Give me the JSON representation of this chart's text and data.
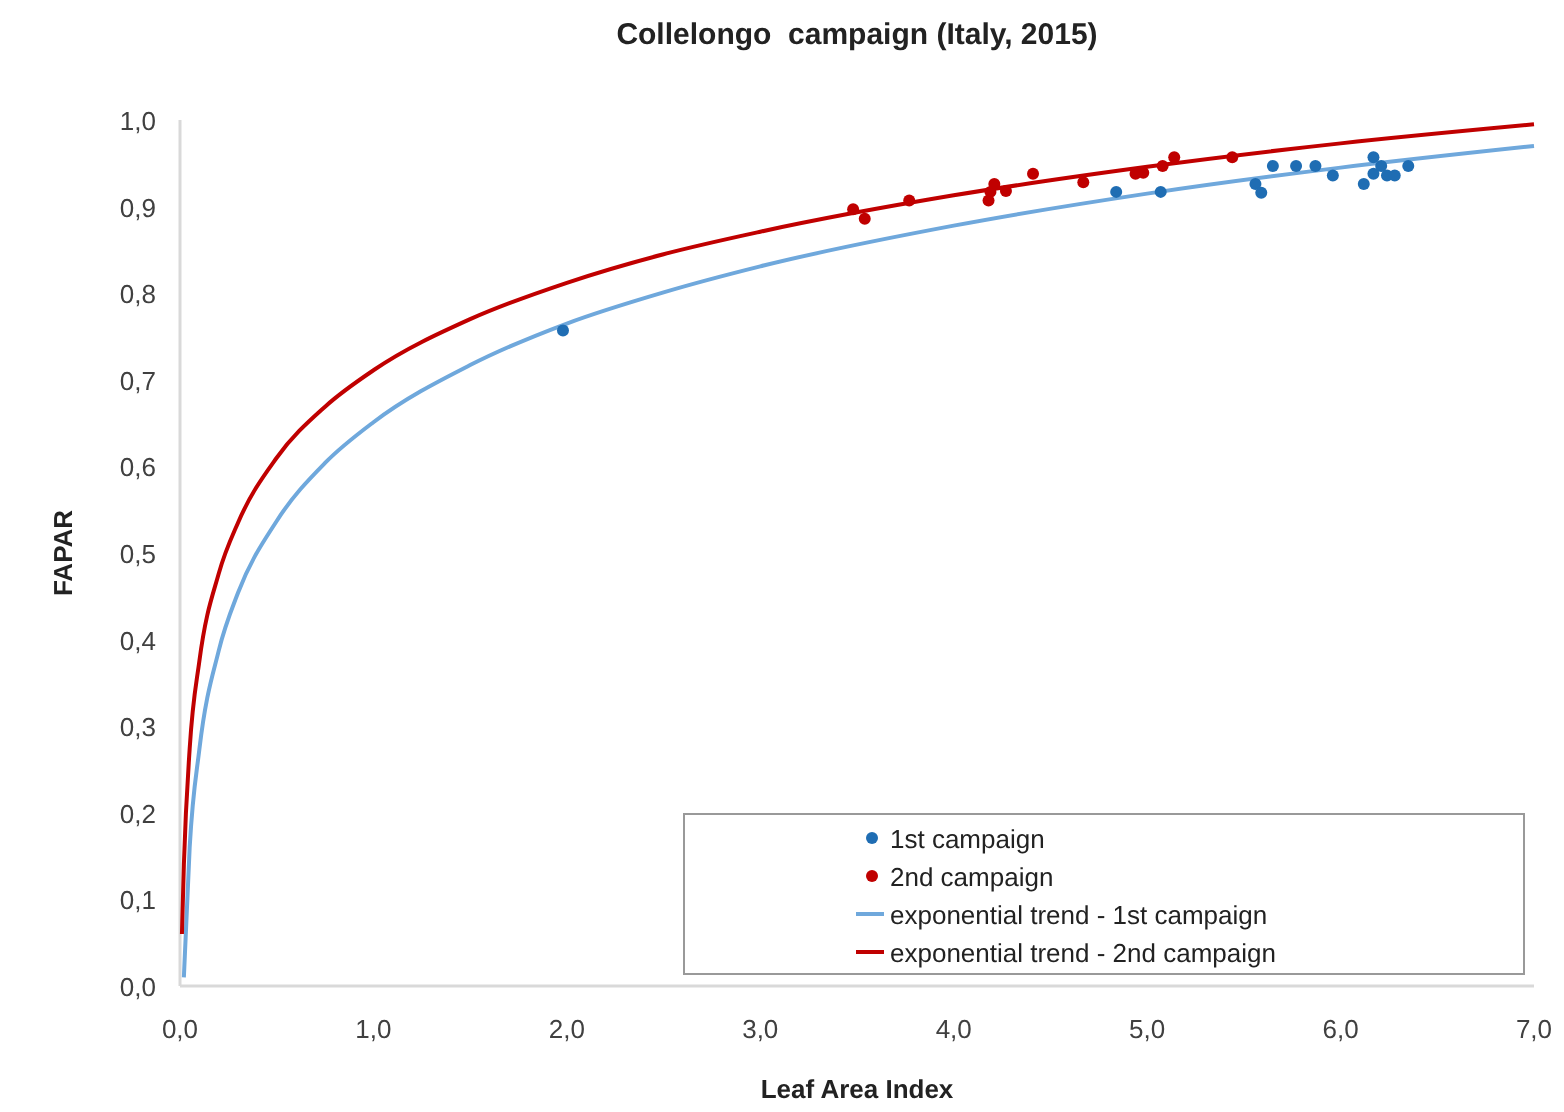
{
  "chart_data": {
    "type": "scatter",
    "title": "Collelongo  campaign (Italy, 2015)",
    "xlabel": "Leaf Area Index",
    "ylabel": "FAPAR",
    "xlim": [
      0,
      7
    ],
    "ylim": [
      0,
      1
    ],
    "xticks": [
      {
        "value": 0,
        "label": "0,0"
      },
      {
        "value": 1,
        "label": "1,0"
      },
      {
        "value": 2,
        "label": "2,0"
      },
      {
        "value": 3,
        "label": "3,0"
      },
      {
        "value": 4,
        "label": "4,0"
      },
      {
        "value": 5,
        "label": "5,0"
      },
      {
        "value": 6,
        "label": "6,0"
      },
      {
        "value": 7,
        "label": "7,0"
      }
    ],
    "yticks": [
      {
        "value": 0,
        "label": "0,0"
      },
      {
        "value": 0.1,
        "label": "0,1"
      },
      {
        "value": 0.2,
        "label": "0,2"
      },
      {
        "value": 0.3,
        "label": "0,3"
      },
      {
        "value": 0.4,
        "label": "0,4"
      },
      {
        "value": 0.5,
        "label": "0,5"
      },
      {
        "value": 0.6,
        "label": "0,6"
      },
      {
        "value": 0.7,
        "label": "0,7"
      },
      {
        "value": 0.8,
        "label": "0,8"
      },
      {
        "value": 0.9,
        "label": "0,9"
      },
      {
        "value": 1,
        "label": "1,0"
      }
    ],
    "grid": false,
    "legend": "bottom right",
    "series": [
      {
        "name": "1st campaign",
        "marker": "circle",
        "color": "#1f6db3",
        "x": [
          1.98,
          4.84,
          5.07,
          5.56,
          5.59,
          5.65,
          5.77,
          5.87,
          5.96,
          6.12,
          6.17,
          6.17,
          6.21,
          6.24,
          6.28,
          6.35
        ],
        "values": [
          0.757,
          0.917,
          0.917,
          0.926,
          0.916,
          0.947,
          0.947,
          0.947,
          0.936,
          0.926,
          0.957,
          0.938,
          0.947,
          0.936,
          0.936,
          0.947
        ]
      },
      {
        "name": "2nd campaign",
        "marker": "circle",
        "color": "#c00000",
        "x": [
          3.48,
          3.54,
          3.77,
          4.18,
          4.19,
          4.21,
          4.27,
          4.41,
          4.67,
          4.94,
          4.98,
          5.08,
          5.14,
          5.44
        ],
        "values": [
          0.897,
          0.886,
          0.907,
          0.907,
          0.917,
          0.926,
          0.918,
          0.938,
          0.928,
          0.938,
          0.939,
          0.947,
          0.957,
          0.957
        ]
      },
      {
        "name": "exponential trend - 1st campaign",
        "type": "line",
        "marker": "none",
        "line_style": "solid",
        "color": "#6fa8dc",
        "x": [
          0.02,
          0.05,
          0.1,
          0.2,
          0.3,
          0.5,
          0.75,
          1,
          1.5,
          2,
          2.5,
          3,
          4,
          5,
          6,
          7
        ],
        "values": [
          0.01,
          0.16,
          0.273,
          0.387,
          0.454,
          0.537,
          0.604,
          0.651,
          0.717,
          0.765,
          0.801,
          0.831,
          0.878,
          0.915,
          0.945,
          0.97
        ]
      },
      {
        "name": "exponential trend - 2nd campaign",
        "type": "line",
        "marker": "none",
        "line_style": "solid",
        "color": "#c00000",
        "x": [
          0.01,
          0.02,
          0.05,
          0.1,
          0.2,
          0.3,
          0.5,
          0.75,
          1,
          1.5,
          2,
          2.5,
          3,
          4,
          5,
          6,
          7
        ],
        "values": [
          0.06,
          0.14,
          0.274,
          0.375,
          0.476,
          0.535,
          0.61,
          0.669,
          0.711,
          0.77,
          0.812,
          0.845,
          0.871,
          0.913,
          0.946,
          0.973,
          0.995
        ]
      }
    ]
  }
}
